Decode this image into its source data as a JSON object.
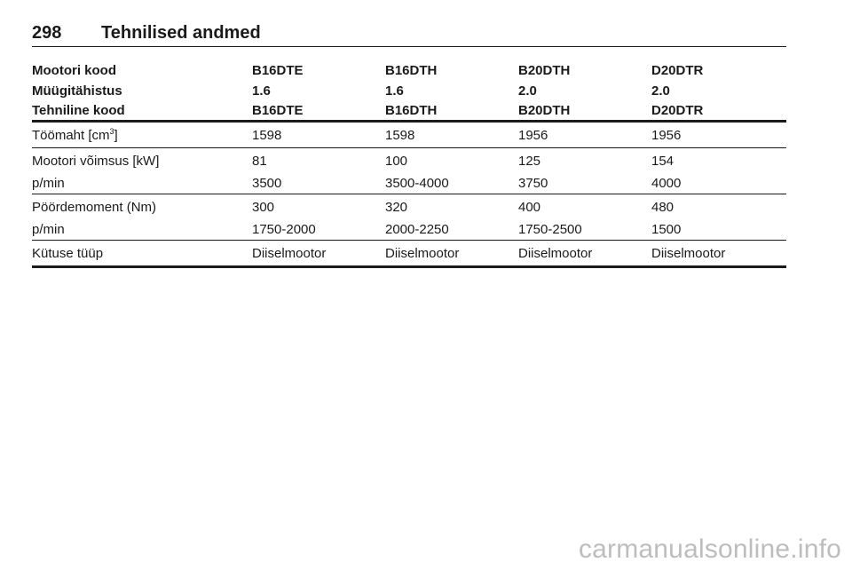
{
  "header": {
    "page_number": "298",
    "title": "Tehnilised andmed"
  },
  "table": {
    "head_rows": [
      {
        "label": "Mootori kood",
        "values": [
          "B16DTE",
          "B16DTH",
          "B20DTH",
          "D20DTR"
        ]
      },
      {
        "label": "Müügitähistus",
        "values": [
          "1.6",
          "1.6",
          "2.0",
          "2.0"
        ]
      },
      {
        "label": "Tehniline kood",
        "values": [
          "B16DTE",
          "B16DTH",
          "B20DTH",
          "D20DTR"
        ]
      }
    ],
    "displacement": {
      "label": "Töömaht [cm",
      "label_sup": "3",
      "label_end": "]",
      "values": [
        "1598",
        "1598",
        "1956",
        "1956"
      ]
    },
    "power": {
      "label": "Mootori võimsus [kW]",
      "values": [
        "81",
        "100",
        "125",
        "154"
      ]
    },
    "power_rpm": {
      "label": "p/min",
      "values": [
        "3500",
        "3500-4000",
        "3750",
        "4000"
      ]
    },
    "torque": {
      "label": "Pöördemoment (Nm)",
      "values": [
        "300",
        "320",
        "400",
        "480"
      ]
    },
    "torque_rpm": {
      "label": "p/min",
      "values": [
        "1750-2000",
        "2000-2250",
        "1750-2500",
        "1500"
      ]
    },
    "fuel": {
      "label": "Kütuse tüüp",
      "values": [
        "Diiselmootor",
        "Diiselmootor",
        "Diiselmootor",
        "Diiselmootor"
      ]
    }
  },
  "watermark": "carmanualsonline.info"
}
